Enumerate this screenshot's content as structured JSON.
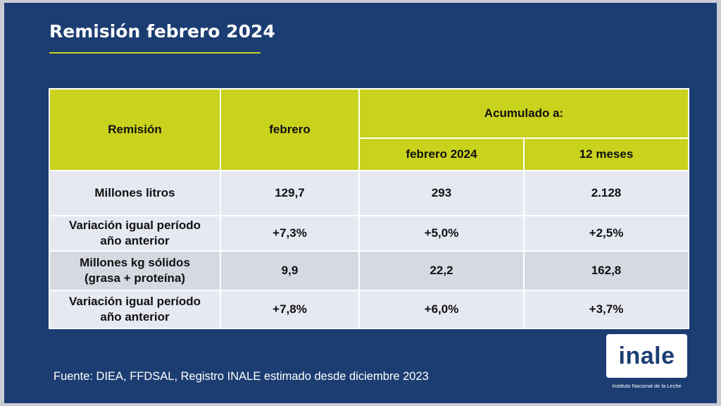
{
  "title": "Remisión febrero 2024",
  "colors": {
    "background": "#1c3d72",
    "accent": "#c9d21c",
    "row_light": "#e6e8f2",
    "row_dark": "#d6d9e2"
  },
  "table": {
    "headers": {
      "remision": "Remisión",
      "febrero": "febrero",
      "acumulado": "Acumulado a:",
      "febrero_2024": "febrero 2024",
      "doce_meses": "12 meses"
    },
    "rows": [
      {
        "label_line1": "Millones litros",
        "label_line2": "",
        "febrero": "129,7",
        "febrero_2024": "293",
        "doce_meses": "2.128"
      },
      {
        "label_line1": "Variación igual período",
        "label_line2": "año anterior",
        "febrero": "+7,3%",
        "febrero_2024": "+5,0%",
        "doce_meses": "+2,5%"
      },
      {
        "label_line1": "Millones kg sólidos",
        "label_line2": "(grasa + proteína)",
        "febrero": "9,9",
        "febrero_2024": "22,2",
        "doce_meses": "162,8"
      },
      {
        "label_line1": "Variación igual período",
        "label_line2": "año anterior",
        "febrero": "+7,8%",
        "febrero_2024": "+6,0%",
        "doce_meses": "+3,7%"
      }
    ]
  },
  "footer": "Fuente: DIEA, FFDSAL, Registro INALE estimado desde diciembre 2023",
  "logo": {
    "wordmark": "inale",
    "subtitle": "Instituto Nacional de la Leche"
  }
}
